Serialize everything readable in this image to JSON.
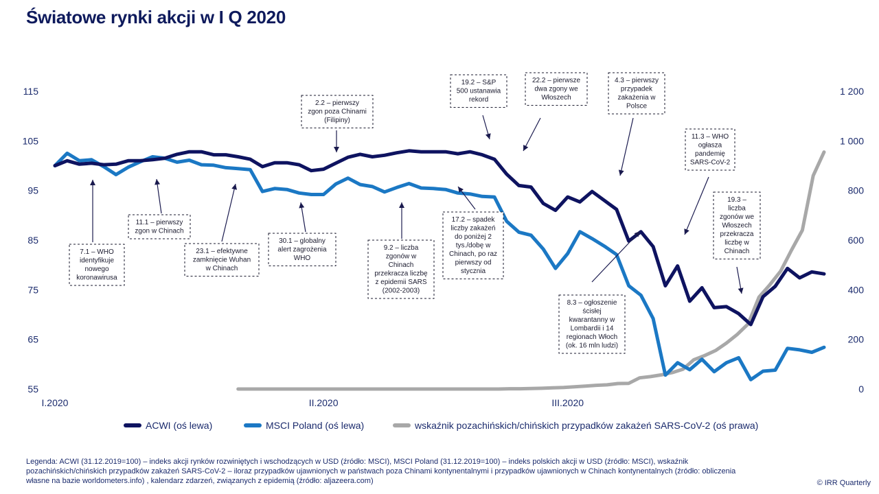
{
  "title": "Światowe rynki akcji w I Q 2020",
  "legend": [
    {
      "label": "ACWI (oś lewa)",
      "color": "#0e1360"
    },
    {
      "label": "MSCI Poland (oś lewa)",
      "color": "#1b78c4"
    },
    {
      "label": "wskaźnik pozachińskich/chińskich przypadków zakażeń SARS-CoV-2 (oś prawa)",
      "color": "#a8a8a8"
    }
  ],
  "footnote": "Legenda: ACWI (31.12.2019=100) – indeks akcji rynków rozwiniętych i wschodzących w USD (źródło: MSCI), MSCI Poland (31.12.2019=100) – indeks polskich akcji w USD (źródło: MSCI), wskaźnik pozachińskich/chińskich przypadków zakażeń SARS-CoV-2 – iloraz przypadków ujawnionych w państwach poza Chinami kontynentalnymi i przypadków ujawnionych w Chinach kontynentalnych (źródło: obliczenia własne na bazie worldometers.info) , kalendarz zdarzeń, związanych z epidemią (źródło: aljazeera.com)",
  "copyright": "© IRR Quarterly",
  "chart_data": {
    "type": "line",
    "x_tick_labels": [
      "I.2020",
      "II.2020",
      "III.2020"
    ],
    "y_left": {
      "ticks": [
        55,
        65,
        75,
        85,
        95,
        105,
        115
      ],
      "range": [
        55,
        115
      ]
    },
    "y_right": {
      "ticks": [
        "0",
        "200",
        "400",
        "600",
        "800",
        "1 000",
        "1 200"
      ],
      "range": [
        0,
        1200
      ]
    },
    "series": [
      {
        "name": "ACWI (oś lewa)",
        "axis": "left",
        "color": "#0e1360",
        "values": [
          100,
          101,
          100.3,
          100.5,
          100.2,
          100.3,
          101,
          101,
          101.2,
          101.5,
          102.3,
          102.8,
          102.8,
          102.2,
          102.2,
          101.8,
          101.3,
          99.8,
          100.6,
          100.6,
          100.2,
          99,
          99.3,
          100.5,
          101.7,
          102.3,
          101.8,
          102.1,
          102.6,
          103,
          102.8,
          102.8,
          102.8,
          102.4,
          102.8,
          102.2,
          101.3,
          98.3,
          96,
          95.7,
          92.4,
          91,
          93.7,
          92.7,
          94.8,
          93,
          91.2,
          84.8,
          86.7,
          83.7,
          75.8,
          79.8,
          72.7,
          75.4,
          71.4,
          71.6,
          70.2,
          68,
          73.6,
          75.7,
          79.3,
          77.4,
          78.6,
          78.2
        ]
      },
      {
        "name": "MSCI Poland (oś lewa)",
        "axis": "left",
        "color": "#1b78c4",
        "values": [
          100,
          102.5,
          101,
          101.2,
          99.8,
          98.2,
          99.7,
          100.8,
          101.8,
          101.5,
          100.7,
          101.1,
          100.2,
          100.1,
          99.6,
          99.4,
          99.2,
          94.8,
          95.4,
          95.2,
          94.5,
          94.2,
          94.2,
          96.3,
          97.5,
          96.2,
          95.8,
          94.7,
          95.6,
          96.4,
          95.5,
          95.4,
          95.2,
          94.5,
          94.3,
          93.8,
          93.7,
          88.8,
          86.6,
          86,
          83.2,
          79.3,
          82.3,
          86.7,
          85.3,
          83.8,
          82.1,
          75.8,
          73.9,
          69.2,
          57.8,
          60.3,
          58.9,
          61,
          58.5,
          60.3,
          61.3,
          56.9,
          58.6,
          58.8,
          63.2,
          62.9,
          62.4,
          63.4
        ]
      },
      {
        "name": "wskaźnik pozachińskich/chińskich przypadków zakażeń SARS-CoV-2 (oś prawa)",
        "axis": "right",
        "color": "#a8a8a8",
        "start_index": 15,
        "values": [
          0,
          0,
          0,
          0,
          0,
          0,
          0,
          0,
          0,
          0,
          0,
          0,
          0,
          0,
          0,
          0,
          0,
          0,
          0,
          0,
          0,
          0,
          0,
          0,
          0,
          1,
          1,
          2,
          3,
          5,
          6,
          9,
          12,
          15,
          17,
          22,
          23,
          45,
          50,
          57,
          66,
          80,
          118,
          135,
          155,
          185,
          220,
          262,
          370,
          420,
          475,
          560,
          640,
          860,
          955
        ]
      }
    ]
  },
  "annotations": [
    {
      "lines": [
        "7.1 – WHO",
        "identyfikuje",
        "nowego",
        "koronawirusa"
      ]
    },
    {
      "lines": [
        "11.1 – pierwszy",
        "zgon w Chinach"
      ]
    },
    {
      "lines": [
        "23.1 – efektywne",
        "zamknięcie Wuhan",
        "w Chinach"
      ]
    },
    {
      "lines": [
        "30.1 – globalny",
        "alert zagrożenia",
        "WHO"
      ]
    },
    {
      "lines": [
        "2.2 – pierwszy",
        "zgon poza Chinami",
        "(Filipiny)"
      ]
    },
    {
      "lines": [
        "9.2 – liczba",
        "zgonów w",
        "Chinach",
        "przekracza liczbę",
        "z epidemii SARS",
        "(2002-2003)"
      ]
    },
    {
      "lines": [
        "17.2 – spadek",
        "liczby zakażeń",
        "do poniżej 2",
        "tys./dobę w",
        "Chinach, po raz",
        "pierwszy od",
        "stycznia"
      ]
    },
    {
      "lines": [
        "19.2 – S&P",
        "500 ustanawia",
        "rekord"
      ]
    },
    {
      "lines": [
        "22.2 – pierwsze",
        "dwa zgony we",
        "Włoszech"
      ]
    },
    {
      "lines": [
        "4.3 – pierwszy",
        "przypadek",
        "zakażenia w",
        "Polsce"
      ]
    },
    {
      "lines": [
        "8.3 – ogłoszenie",
        "ścisłej",
        "kwarantanny w",
        "Lombardii i 14",
        "regionach Włoch",
        "(ok. 16 mln ludzi)"
      ]
    },
    {
      "lines": [
        "11.3 – WHO",
        "ogłasza",
        "pandemię",
        "SARS-CoV-2"
      ]
    },
    {
      "lines": [
        "19.3 –",
        "liczba",
        "zgonów we",
        "Włoszech",
        "przekracza",
        "liczbę w",
        "Chinach"
      ]
    }
  ]
}
